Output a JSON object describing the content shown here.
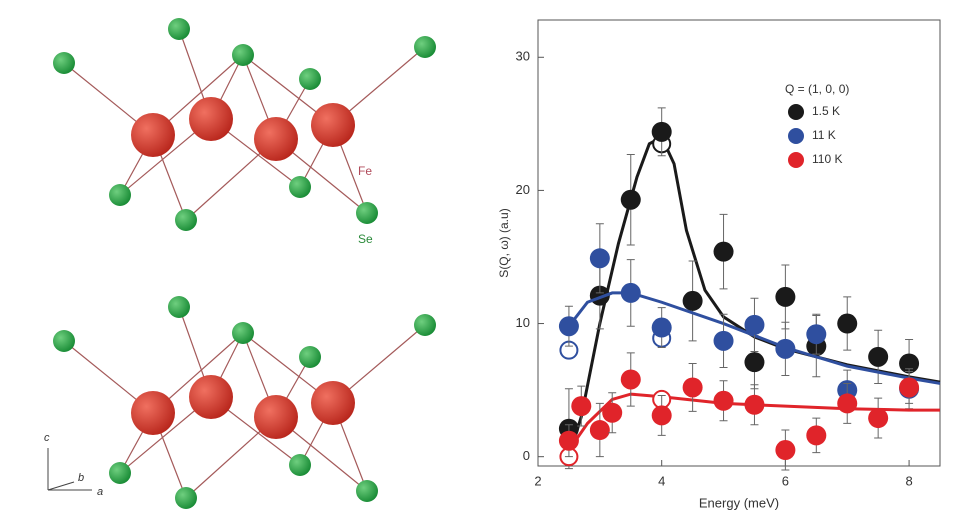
{
  "structure": {
    "fe_label": "Fe",
    "se_label": "Se",
    "axis_a": "a",
    "axis_b": "b",
    "axis_c": "c"
  },
  "chart_data": {
    "type": "scatter",
    "x_label": "Energy (meV)",
    "y_label": "S(Q, ω) (a.u)",
    "legend_title": "Q = (1, 0, 0)",
    "xlim": [
      2,
      8.5
    ],
    "ylim": [
      -0.7,
      32.8
    ],
    "xticks": [
      2,
      4,
      6,
      8
    ],
    "yticks": [
      0,
      10,
      20,
      30
    ],
    "series": [
      {
        "name": "1.5 K",
        "color": "#1a1a1a",
        "x": [
          2.5,
          3.0,
          3.5,
          4.0,
          4.5,
          5.0,
          5.5,
          6.0,
          6.5,
          7.0,
          7.5,
          8.0
        ],
        "values": [
          2.1,
          12.1,
          19.3,
          24.4,
          11.7,
          15.4,
          7.1,
          12.0,
          8.3,
          10.0,
          7.5,
          7.0
        ],
        "errors": [
          3.0,
          2.5,
          3.4,
          1.8,
          3.0,
          2.8,
          2.0,
          2.4,
          2.3,
          2.0,
          2.0,
          1.8
        ],
        "open_x": [
          4.0
        ],
        "open_values": [
          23.5
        ],
        "fit": {
          "x": [
            2.5,
            2.7,
            3.0,
            3.3,
            3.6,
            3.8,
            4.0,
            4.2,
            4.4,
            4.7,
            5.0,
            5.5,
            6.0,
            7.0,
            8.0,
            8.5
          ],
          "y": [
            0,
            3,
            10,
            16,
            21,
            23.5,
            24,
            22,
            17,
            12.5,
            10.5,
            9,
            8.1,
            6.9,
            6.0,
            5.6
          ]
        }
      },
      {
        "name": "11 K",
        "color": "#2f4f9f",
        "x": [
          2.5,
          3.0,
          3.5,
          4.0,
          5.0,
          5.5,
          6.0,
          6.5,
          7.0,
          8.0
        ],
        "values": [
          9.8,
          14.9,
          12.3,
          9.7,
          8.7,
          9.9,
          8.1,
          9.2,
          5.0,
          5.1
        ],
        "errors": [
          1.5,
          2.6,
          2.5,
          1.5,
          2.0,
          2.0,
          2.0,
          1.5,
          1.5,
          1.5
        ],
        "open_x": [
          2.5,
          4.0
        ],
        "open_values": [
          8.0,
          8.9
        ],
        "fit": {
          "x": [
            2.5,
            2.8,
            3.2,
            3.5,
            4.0,
            5.0,
            6.0,
            7.0,
            8.0,
            8.5
          ],
          "y": [
            9.8,
            11.6,
            12.3,
            12.3,
            11.6,
            10,
            8.2,
            6.8,
            5.9,
            5.5
          ]
        }
      },
      {
        "name": "110 K",
        "color": "#e0242a",
        "x": [
          2.5,
          2.7,
          3.0,
          3.2,
          3.5,
          4.0,
          4.5,
          5.0,
          5.5,
          6.0,
          6.5,
          7.0,
          7.5,
          8.0
        ],
        "values": [
          1.2,
          3.8,
          2.0,
          3.3,
          5.8,
          3.1,
          5.2,
          4.2,
          3.9,
          0.5,
          1.6,
          4.0,
          2.9,
          5.2
        ],
        "errors": [
          1.2,
          1.5,
          2.0,
          1.5,
          2.0,
          1.5,
          1.8,
          1.5,
          1.5,
          1.5,
          1.3,
          1.5,
          1.5,
          1.2
        ],
        "open_x": [
          2.5,
          4.0
        ],
        "open_values": [
          0,
          4.3
        ],
        "fit": {
          "x": [
            2.5,
            2.8,
            3.2,
            3.5,
            4.0,
            5.0,
            6.0,
            7.0,
            8.0,
            8.5
          ],
          "y": [
            0.5,
            2.5,
            4.3,
            4.7,
            4.5,
            4.0,
            3.8,
            3.6,
            3.5,
            3.5
          ]
        }
      }
    ]
  }
}
